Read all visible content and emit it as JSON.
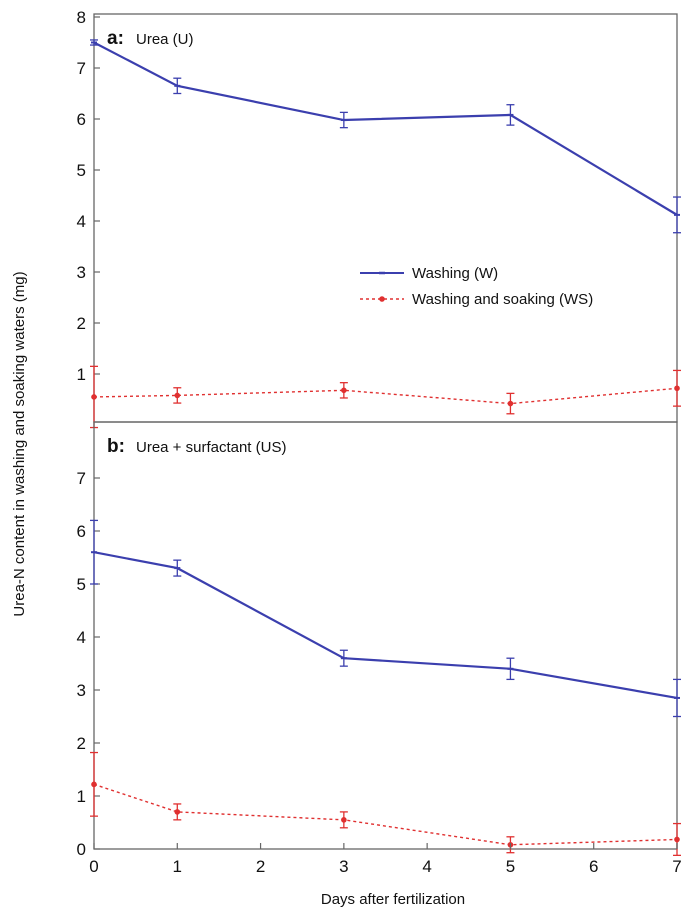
{
  "chart_data": {
    "type": "line",
    "ylabel": "Urea-N content in washing and soaking waters (mg)",
    "xlabel": "Days after fertilization",
    "x_ticks": [
      "0",
      "1",
      "2",
      "3",
      "4",
      "5",
      "6",
      "7"
    ],
    "xlim": [
      0,
      7
    ],
    "legend": {
      "placement": "center-right of panel a",
      "entries": [
        "Washing (W)",
        "Washing and soaking (WS)"
      ]
    },
    "colors": {
      "washing": "#3b3fae",
      "washing_soaking": "#e03030",
      "frame": "#666666"
    },
    "grid": false,
    "panels": [
      {
        "tag": "a:",
        "title": "Urea (U)",
        "ylim": [
          0,
          8
        ],
        "y_ticks": [
          "1",
          "2",
          "3",
          "4",
          "5",
          "6",
          "7",
          "8"
        ],
        "series": [
          {
            "name": "Washing (W)",
            "x": [
              0,
              1,
              3,
              5,
              7
            ],
            "y": [
              7.5,
              6.65,
              5.98,
              6.08,
              4.12
            ],
            "err": [
              0.05,
              0.15,
              0.15,
              0.2,
              0.35
            ]
          },
          {
            "name": "Washing and soaking (WS)",
            "x": [
              0,
              1,
              3,
              5,
              7
            ],
            "y": [
              0.55,
              0.58,
              0.68,
              0.42,
              0.72
            ],
            "err": [
              0.6,
              0.15,
              0.15,
              0.2,
              0.35
            ]
          }
        ]
      },
      {
        "tag": "b:",
        "title": "Urea + surfactant (US)",
        "ylim": [
          0,
          8
        ],
        "y_ticks": [
          "0",
          "1",
          "2",
          "3",
          "4",
          "5",
          "6",
          "7"
        ],
        "series": [
          {
            "name": "Washing (W)",
            "x": [
              0,
              1,
              3,
              5,
              7
            ],
            "y": [
              5.6,
              5.3,
              3.6,
              3.4,
              2.85
            ],
            "err": [
              0.6,
              0.15,
              0.15,
              0.2,
              0.35
            ]
          },
          {
            "name": "Washing and soaking (WS)",
            "x": [
              0,
              1,
              3,
              5,
              7
            ],
            "y": [
              1.22,
              0.7,
              0.55,
              0.08,
              0.18
            ],
            "err": [
              0.6,
              0.15,
              0.15,
              0.15,
              0.3
            ]
          }
        ]
      }
    ]
  }
}
